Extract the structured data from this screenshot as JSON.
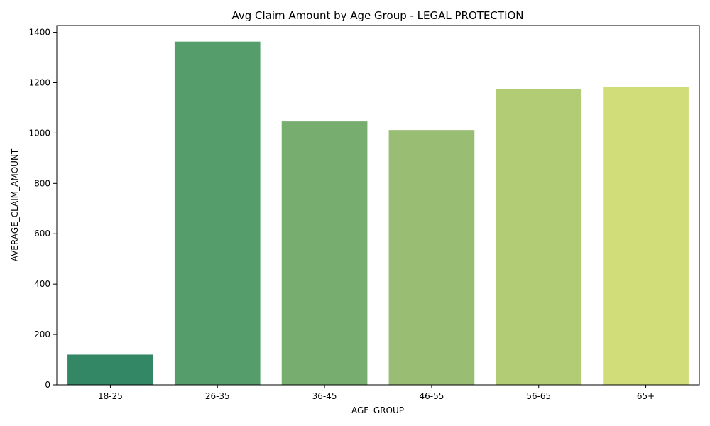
{
  "chart_data": {
    "type": "bar",
    "title": "Avg Claim Amount by Age Group - LEGAL PROTECTION",
    "xlabel": "AGE_GROUP",
    "ylabel": "AVERAGE_CLAIM_AMOUNT",
    "categories": [
      "18-25",
      "26-35",
      "36-45",
      "46-55",
      "56-65",
      "65+"
    ],
    "values": [
      120,
      1363,
      1046,
      1012,
      1174,
      1182
    ],
    "colors": [
      "#348764",
      "#559d6b",
      "#77ae6f",
      "#98bd73",
      "#b2cc76",
      "#d1dd79"
    ],
    "ylim": [
      0,
      1400
    ],
    "yticks": [
      0,
      200,
      400,
      600,
      800,
      1000,
      1200,
      1400
    ],
    "grid": false,
    "legend": "none"
  }
}
